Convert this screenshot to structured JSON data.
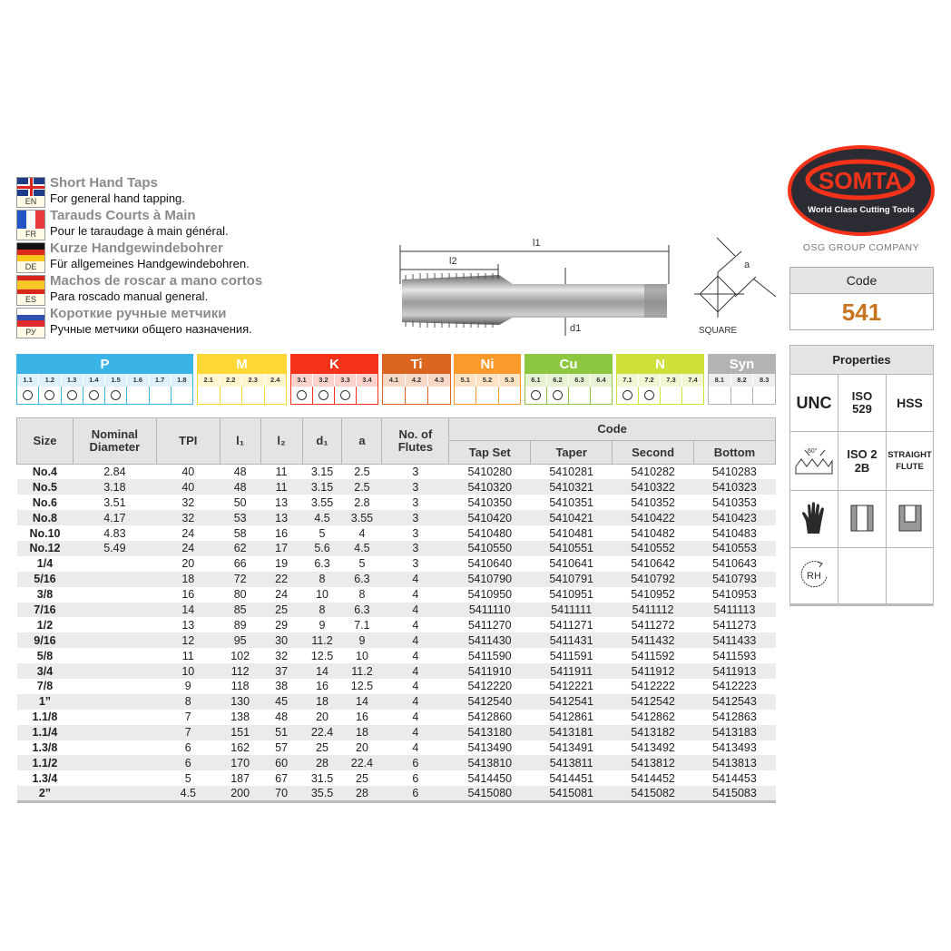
{
  "languages": [
    {
      "code": "EN",
      "title": "Short Hand Taps",
      "subtitle": "For general hand tapping."
    },
    {
      "code": "FR",
      "title": "Tarauds Courts à Main",
      "subtitle": "Pour le taraudage à main général."
    },
    {
      "code": "DE",
      "title": "Kurze Handgewindebohrer",
      "subtitle": "Für allgemeines Handgewindebohren."
    },
    {
      "code": "ES",
      "title": "Machos de roscar a mano cortos",
      "subtitle": "Para roscado manual general."
    },
    {
      "code": "РУ",
      "title": "Короткие ручные метчики",
      "subtitle": "Ручные метчики общего назначения."
    }
  ],
  "diagram": {
    "l1": "l1",
    "l2": "l2",
    "d1": "d1",
    "a": "a",
    "square": "SQUARE"
  },
  "brand": {
    "logo_text": "SOMTA",
    "tagline": "World Class Cutting Tools",
    "group": "OSG GROUP COMPANY"
  },
  "code_box": {
    "label": "Code",
    "value": "541",
    "value_color": "#c8741e"
  },
  "materials": [
    {
      "label": "P",
      "color": "#3ab4e6",
      "light": "#dff1fb",
      "subs": [
        "1.1",
        "1.2",
        "1.3",
        "1.4",
        "1.5",
        "1.6",
        "1.7",
        "1.8"
      ],
      "suitable": [
        true,
        true,
        true,
        true,
        true,
        false,
        false,
        false
      ]
    },
    {
      "label": "M",
      "color": "#fdd835",
      "light": "#fff6cf",
      "subs": [
        "2.1",
        "2.2",
        "2.3",
        "2.4"
      ],
      "suitable": [
        false,
        false,
        false,
        false
      ]
    },
    {
      "label": "K",
      "color": "#f4321a",
      "light": "#fbd3cc",
      "subs": [
        "3.1",
        "3.2",
        "3.3",
        "3.4"
      ],
      "suitable": [
        true,
        true,
        true,
        false
      ]
    },
    {
      "label": "Ti",
      "color": "#d9651e",
      "light": "#f5d9c6",
      "subs": [
        "4.1",
        "4.2",
        "4.3"
      ],
      "suitable": [
        false,
        false,
        false
      ]
    },
    {
      "label": "Ni",
      "color": "#fb9a2a",
      "light": "#fde3c4",
      "subs": [
        "5.1",
        "5.2",
        "5.3"
      ],
      "suitable": [
        false,
        false,
        false
      ]
    },
    {
      "label": "Cu",
      "color": "#8dc63f",
      "light": "#e5f2d3",
      "subs": [
        "6.1",
        "6.2",
        "6.3",
        "6.4"
      ],
      "suitable": [
        true,
        true,
        false,
        false
      ]
    },
    {
      "label": "N",
      "color": "#cfe03a",
      "light": "#f2f6d2",
      "subs": [
        "7.1",
        "7.2",
        "7.3",
        "7.4"
      ],
      "suitable": [
        true,
        true,
        false,
        false
      ]
    },
    {
      "label": "Syn",
      "color": "#b3b3b3",
      "light": "#eeeeee",
      "subs": [
        "8.1",
        "8.2",
        "8.3"
      ],
      "suitable": [
        false,
        false,
        false
      ]
    }
  ],
  "table": {
    "headers": {
      "size": "Size",
      "nominal": "Nominal Diameter",
      "tpi": "TPI",
      "l1": "l₁",
      "l2": "l₂",
      "d1": "d₁",
      "a": "a",
      "flutes": "No. of Flutes",
      "code": "Code",
      "tap_set": "Tap Set",
      "taper": "Taper",
      "second": "Second",
      "bottom": "Bottom"
    },
    "rows": [
      [
        "No.4",
        "2.84",
        "40",
        "48",
        "11",
        "3.15",
        "2.5",
        "3",
        "5410280",
        "5410281",
        "5410282",
        "5410283"
      ],
      [
        "No.5",
        "3.18",
        "40",
        "48",
        "11",
        "3.15",
        "2.5",
        "3",
        "5410320",
        "5410321",
        "5410322",
        "5410323"
      ],
      [
        "No.6",
        "3.51",
        "32",
        "50",
        "13",
        "3.55",
        "2.8",
        "3",
        "5410350",
        "5410351",
        "5410352",
        "5410353"
      ],
      [
        "No.8",
        "4.17",
        "32",
        "53",
        "13",
        "4.5",
        "3.55",
        "3",
        "5410420",
        "5410421",
        "5410422",
        "5410423"
      ],
      [
        "No.10",
        "4.83",
        "24",
        "58",
        "16",
        "5",
        "4",
        "3",
        "5410480",
        "5410481",
        "5410482",
        "5410483"
      ],
      [
        "No.12",
        "5.49",
        "24",
        "62",
        "17",
        "5.6",
        "4.5",
        "3",
        "5410550",
        "5410551",
        "5410552",
        "5410553"
      ],
      [
        "1/4",
        "",
        "20",
        "66",
        "19",
        "6.3",
        "5",
        "3",
        "5410640",
        "5410641",
        "5410642",
        "5410643"
      ],
      [
        "5/16",
        "",
        "18",
        "72",
        "22",
        "8",
        "6.3",
        "4",
        "5410790",
        "5410791",
        "5410792",
        "5410793"
      ],
      [
        "3/8",
        "",
        "16",
        "80",
        "24",
        "10",
        "8",
        "4",
        "5410950",
        "5410951",
        "5410952",
        "5410953"
      ],
      [
        "7/16",
        "",
        "14",
        "85",
        "25",
        "8",
        "6.3",
        "4",
        "5411110",
        "5411111",
        "5411112",
        "5411113"
      ],
      [
        "1/2",
        "",
        "13",
        "89",
        "29",
        "9",
        "7.1",
        "4",
        "5411270",
        "5411271",
        "5411272",
        "5411273"
      ],
      [
        "9/16",
        "",
        "12",
        "95",
        "30",
        "11.2",
        "9",
        "4",
        "5411430",
        "5411431",
        "5411432",
        "5411433"
      ],
      [
        "5/8",
        "",
        "11",
        "102",
        "32",
        "12.5",
        "10",
        "4",
        "5411590",
        "5411591",
        "5411592",
        "5411593"
      ],
      [
        "3/4",
        "",
        "10",
        "112",
        "37",
        "14",
        "11.2",
        "4",
        "5411910",
        "5411911",
        "5411912",
        "5411913"
      ],
      [
        "7/8",
        "",
        "9",
        "118",
        "38",
        "16",
        "12.5",
        "4",
        "5412220",
        "5412221",
        "5412222",
        "5412223"
      ],
      [
        "1”",
        "",
        "8",
        "130",
        "45",
        "18",
        "14",
        "4",
        "5412540",
        "5412541",
        "5412542",
        "5412543"
      ],
      [
        "1.1/8",
        "",
        "7",
        "138",
        "48",
        "20",
        "16",
        "4",
        "5412860",
        "5412861",
        "5412862",
        "5412863"
      ],
      [
        "1.1/4",
        "",
        "7",
        "151",
        "51",
        "22.4",
        "18",
        "4",
        "5413180",
        "5413181",
        "5413182",
        "5413183"
      ],
      [
        "1.3/8",
        "",
        "6",
        "162",
        "57",
        "25",
        "20",
        "4",
        "5413490",
        "5413491",
        "5413492",
        "5413493"
      ],
      [
        "1.1/2",
        "",
        "6",
        "170",
        "60",
        "28",
        "22.4",
        "6",
        "5413810",
        "5413811",
        "5413812",
        "5413813"
      ],
      [
        "1.3/4",
        "",
        "5",
        "187",
        "67",
        "31.5",
        "25",
        "6",
        "5414450",
        "5414451",
        "5414452",
        "5414453"
      ],
      [
        "2”",
        "",
        "4.5",
        "200",
        "70",
        "35.5",
        "28",
        "6",
        "5415080",
        "5415081",
        "5415082",
        "5415083"
      ]
    ]
  },
  "properties": {
    "title": "Properties",
    "thread": "UNC",
    "standard": "ISO 529",
    "material": "HSS",
    "angle": "60°",
    "tolerance": "ISO 2 2B",
    "flute": "STRAIGHT FLUTE",
    "rotation": "RH",
    "icons": [
      "thread-profile-60-icon",
      "hand-glove-icon",
      "through-hole-icon",
      "blind-hole-icon",
      "right-hand-rotation-icon"
    ]
  }
}
